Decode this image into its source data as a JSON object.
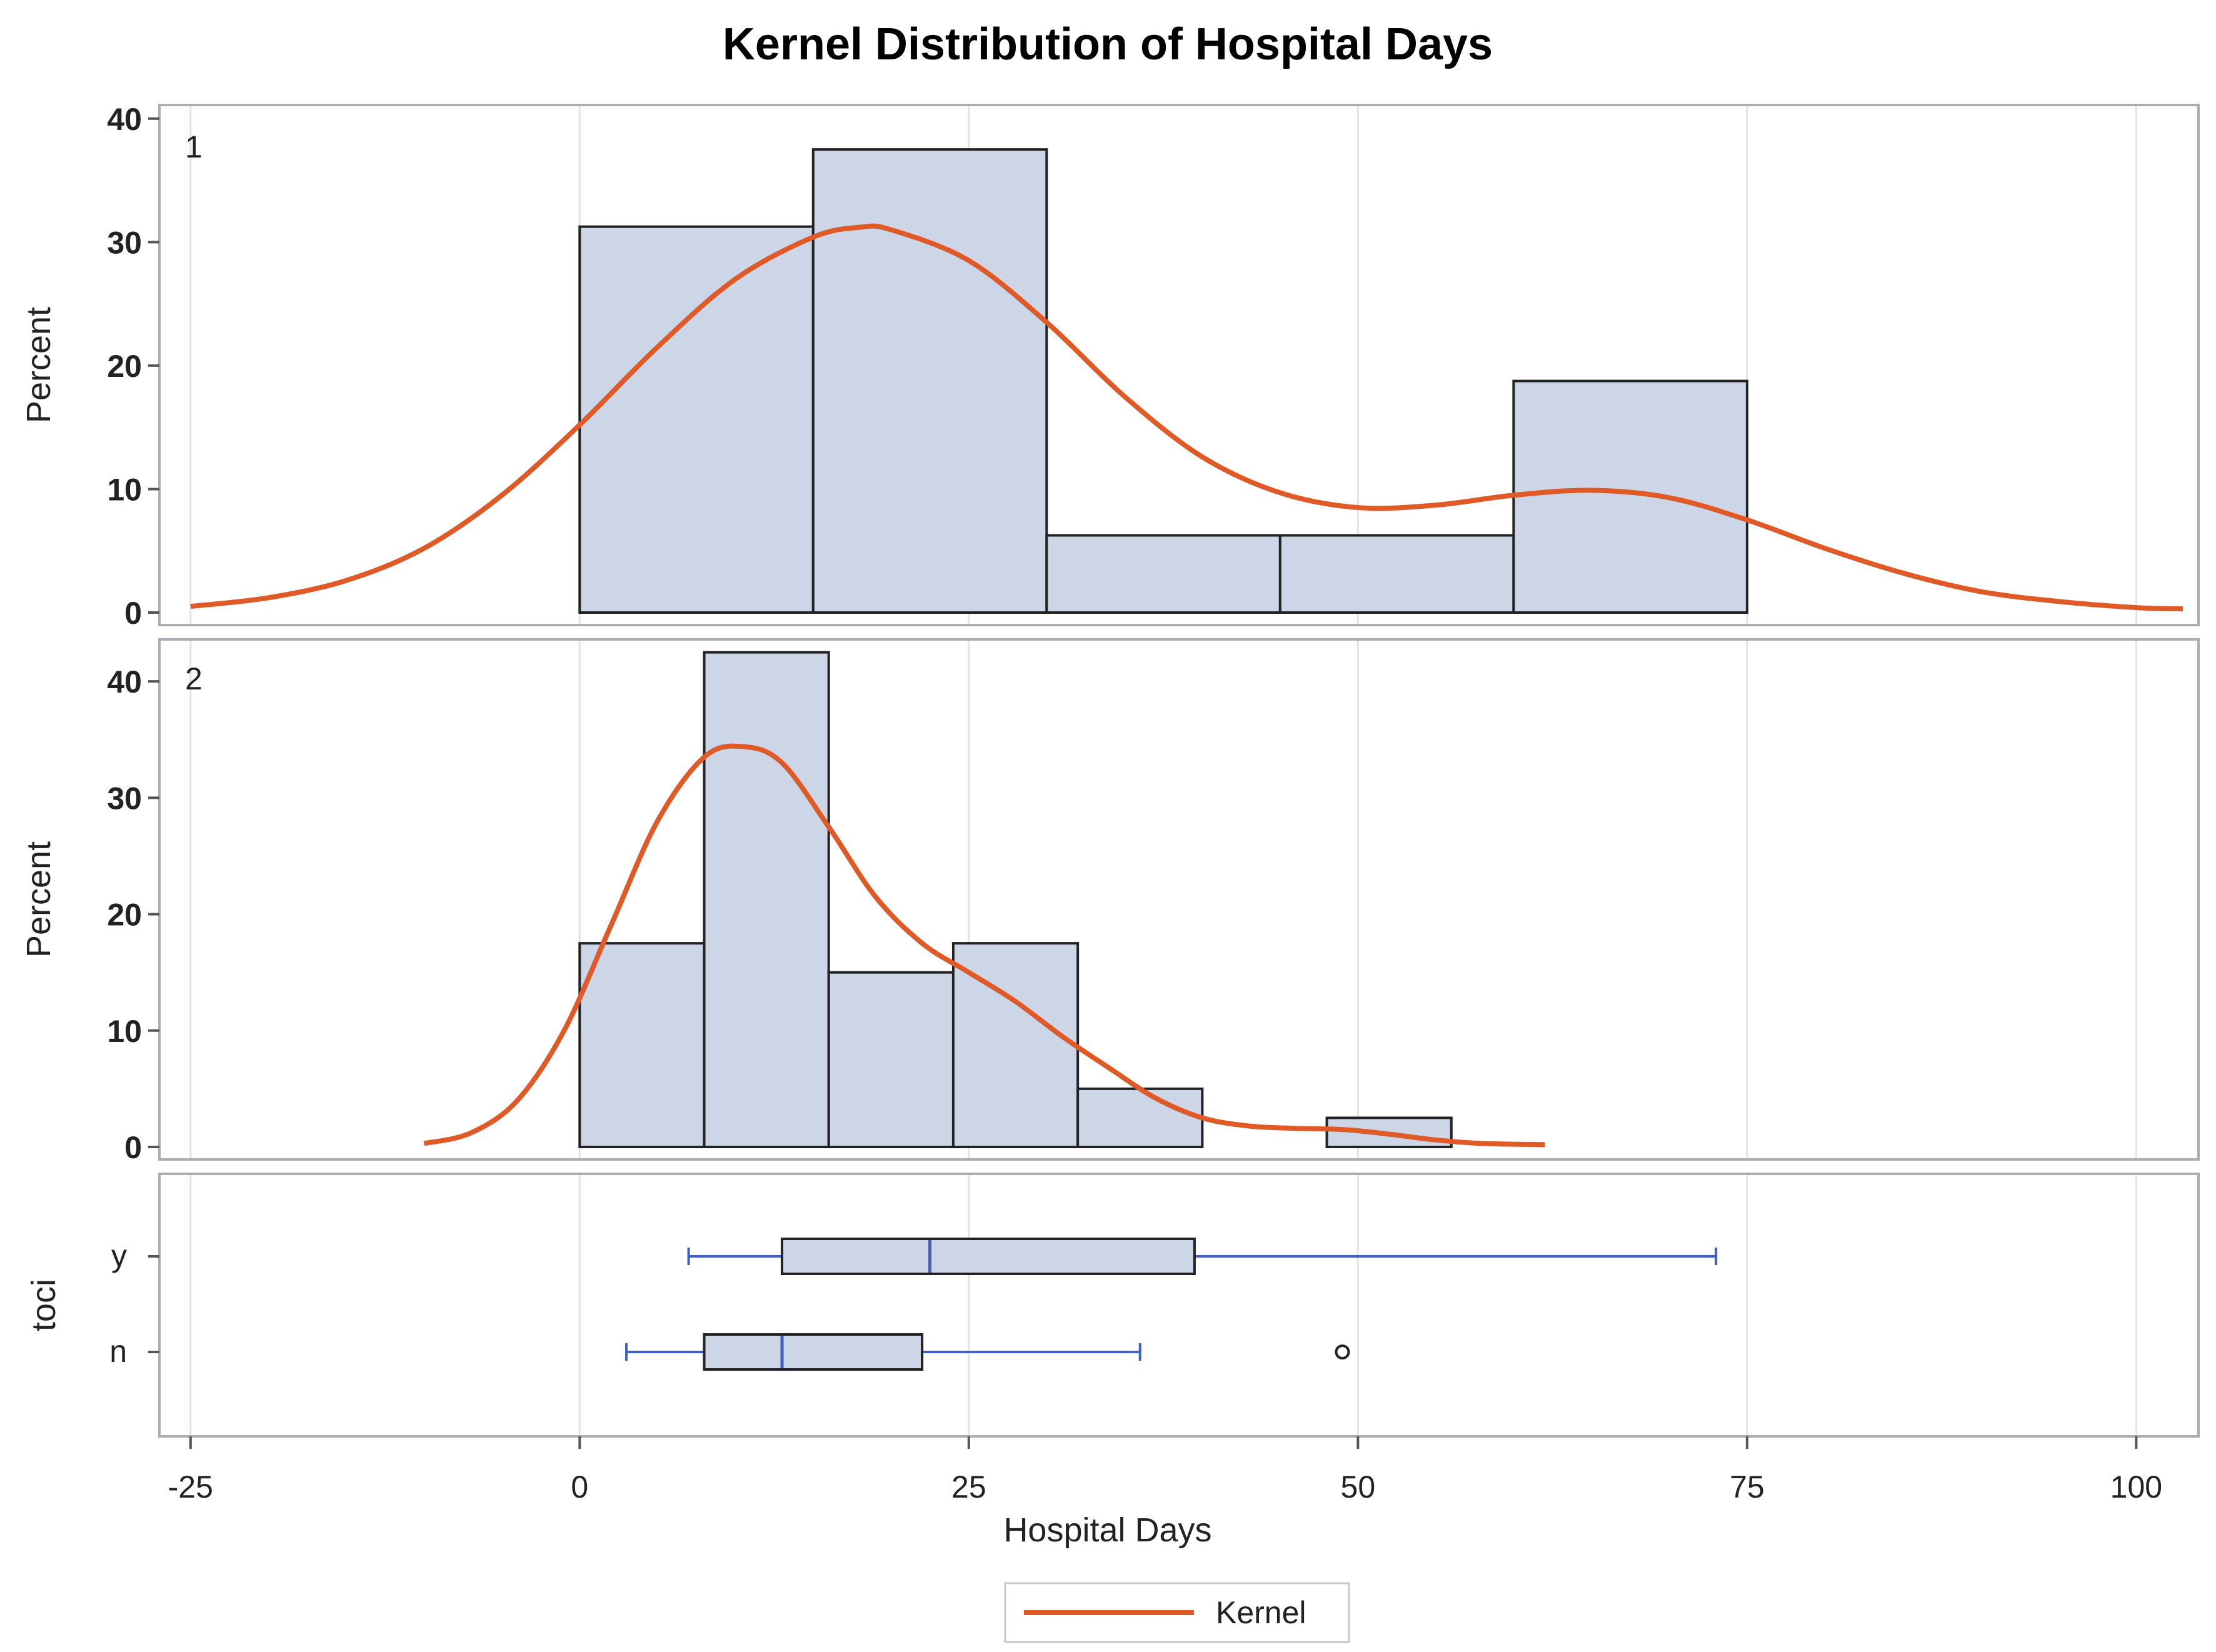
{
  "chart_data": {
    "type": "histogram+kernel+boxplot",
    "title": "Kernel Distribution of Hospital Days",
    "xlabel": "Hospital Days",
    "xlim": [
      -27,
      104
    ],
    "xticks": [
      -25,
      0,
      25,
      50,
      75,
      100
    ],
    "colors": {
      "bar": "#ccd6e6",
      "kernel": "#e05a28",
      "whisker": "#3e5fc8"
    },
    "panels": [
      {
        "label": "1",
        "ylabel": "Percent",
        "ylim": [
          0,
          41
        ],
        "yticks": [
          0,
          10,
          20,
          30,
          40
        ],
        "bins": [
          {
            "start": 0,
            "end": 15,
            "value": 31.25
          },
          {
            "start": 15,
            "end": 30,
            "value": 37.5
          },
          {
            "start": 30,
            "end": 45,
            "value": 6.25
          },
          {
            "start": 45,
            "end": 60,
            "value": 6.25
          },
          {
            "start": 60,
            "end": 75,
            "value": 18.75
          }
        ],
        "kernel": {
          "x": [
            -25,
            -20,
            -15,
            -10,
            -5,
            0,
            5,
            10,
            15,
            18,
            20,
            25,
            30,
            35,
            40,
            45,
            50,
            55,
            60,
            65,
            70,
            75,
            80,
            85,
            90,
            95,
            100,
            103
          ],
          "y": [
            0.5,
            1.2,
            2.6,
            5.2,
            9.5,
            15.2,
            21.5,
            27.0,
            30.4,
            31.2,
            31.0,
            28.5,
            23.5,
            17.5,
            12.6,
            9.7,
            8.5,
            8.7,
            9.5,
            9.9,
            9.3,
            7.5,
            5.2,
            3.2,
            1.7,
            0.9,
            0.4,
            0.3
          ]
        }
      },
      {
        "label": "2",
        "ylabel": "Percent",
        "ylim": [
          0,
          43.5
        ],
        "yticks": [
          0,
          10,
          20,
          30,
          40
        ],
        "bins": [
          {
            "start": 0,
            "end": 8,
            "value": 17.5
          },
          {
            "start": 8,
            "end": 16,
            "value": 42.5
          },
          {
            "start": 16,
            "end": 24,
            "value": 15.0
          },
          {
            "start": 24,
            "end": 32,
            "value": 17.5
          },
          {
            "start": 32,
            "end": 40,
            "value": 5.0
          },
          {
            "start": 40,
            "end": 48,
            "value": 0
          },
          {
            "start": 48,
            "end": 56,
            "value": 2.5
          }
        ],
        "kernel": {
          "x": [
            -10,
            -7,
            -4,
            -1,
            2,
            5,
            8,
            10.5,
            13,
            16,
            19,
            22,
            25,
            28,
            31,
            34,
            37,
            40,
            43,
            46,
            49,
            52,
            55,
            58,
            62
          ],
          "y": [
            0.3,
            1.2,
            4.0,
            10.0,
            19.0,
            28.0,
            33.5,
            34.4,
            33.0,
            27.5,
            21.5,
            17.5,
            15.0,
            12.5,
            9.5,
            6.8,
            4.2,
            2.5,
            1.8,
            1.6,
            1.5,
            1.1,
            0.6,
            0.3,
            0.2
          ]
        }
      }
    ],
    "boxplot": {
      "ylabel": "toci",
      "categories": [
        "y",
        "n"
      ],
      "boxes": [
        {
          "label": "y",
          "whisker_low": 7,
          "q1": 13,
          "median": 22.5,
          "q3": 39.5,
          "whisker_high": 73,
          "outliers": []
        },
        {
          "label": "n",
          "whisker_low": 3,
          "q1": 8,
          "median": 13,
          "q3": 22,
          "whisker_high": 36,
          "outliers": [
            49
          ]
        }
      ]
    },
    "legend": {
      "entries": [
        "Kernel"
      ],
      "position": "bottom-center"
    }
  }
}
